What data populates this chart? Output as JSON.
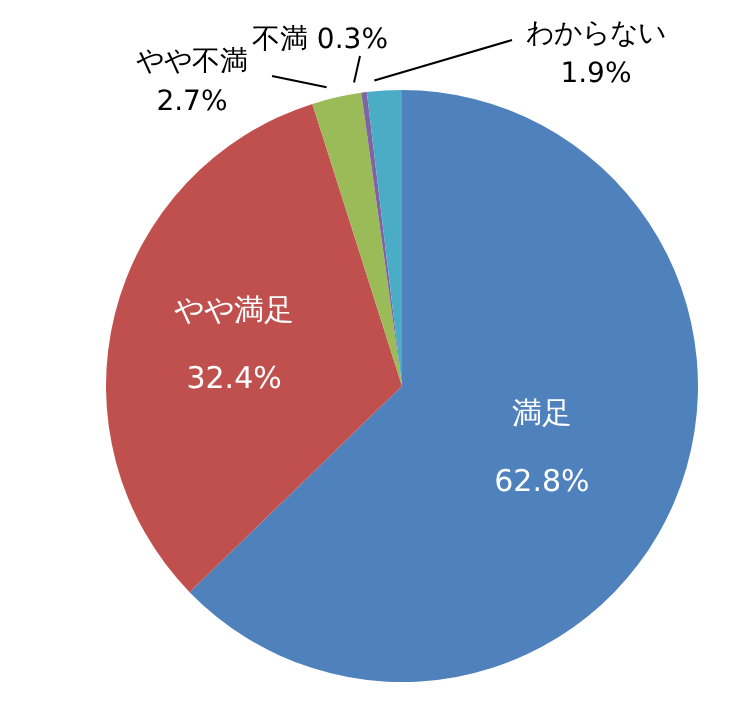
{
  "chart_data": {
    "type": "pie",
    "categories": [
      "満足",
      "やや満足",
      "やや不満",
      "不満",
      "わからない"
    ],
    "values": [
      62.8,
      32.4,
      2.7,
      0.3,
      1.9
    ],
    "value_labels": [
      "62.8%",
      "32.4%",
      "2.7%",
      "0.3%",
      "1.9%"
    ],
    "colors": [
      "#4f81bd",
      "#c0504d",
      "#9bbb59",
      "#8064a2",
      "#4bacc6"
    ],
    "legend": false
  }
}
